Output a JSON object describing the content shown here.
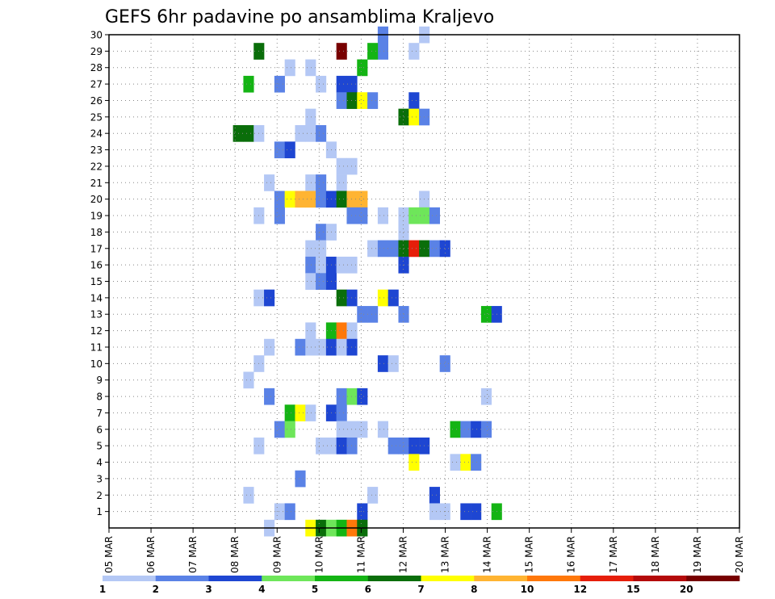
{
  "chart_data": {
    "type": "heatmap",
    "title": "GEFS 6hr padavine po ansamblima Kraljevo",
    "xlabel": "",
    "ylabel": "",
    "x_ticks": [
      "05 MAR",
      "06 MAR",
      "07 MAR",
      "08 MAR",
      "09 MAR",
      "10 MAR",
      "11 MAR",
      "12 MAR",
      "13 MAR",
      "14 MAR",
      "15 MAR",
      "16 MAR",
      "17 MAR",
      "18 MAR",
      "19 MAR",
      "20 MAR"
    ],
    "x_range": [
      0,
      61
    ],
    "y_ticks": [
      1,
      2,
      3,
      4,
      5,
      6,
      7,
      8,
      9,
      10,
      11,
      12,
      13,
      14,
      15,
      16,
      17,
      18,
      19,
      20,
      21,
      22,
      23,
      24,
      25,
      26,
      27,
      28,
      29,
      30
    ],
    "y_range": [
      0,
      30
    ],
    "grid": true,
    "colorbar": {
      "position": "bottom",
      "labels": [
        "1",
        "2",
        "3",
        "4",
        "5",
        "6",
        "7",
        "8",
        "10",
        "12",
        "15",
        "20"
      ],
      "colors": [
        "#b4c8f5",
        "#5a82e6",
        "#1e46d2",
        "#6ee65a",
        "#14b414",
        "#0a6e0a",
        "#ffff00",
        "#ffb432",
        "#ff780a",
        "#e61e0a",
        "#b40a0a",
        "#780000"
      ]
    },
    "cells": [
      [
        30,
        30,
        0
      ],
      [
        30,
        26,
        1
      ],
      [
        29,
        29,
        0
      ],
      [
        29,
        26,
        1
      ],
      [
        29,
        25,
        4
      ],
      [
        29,
        14,
        5
      ],
      [
        29,
        22,
        11
      ],
      [
        28,
        24,
        4
      ],
      [
        28,
        17,
        0
      ],
      [
        28,
        19,
        0
      ],
      [
        27,
        13,
        4
      ],
      [
        27,
        16,
        1
      ],
      [
        27,
        20,
        0
      ],
      [
        27,
        22,
        2
      ],
      [
        27,
        23,
        2
      ],
      [
        26,
        22,
        1
      ],
      [
        26,
        23,
        5
      ],
      [
        26,
        24,
        6
      ],
      [
        26,
        25,
        1
      ],
      [
        26,
        29,
        2
      ],
      [
        25,
        19,
        0
      ],
      [
        25,
        28,
        5
      ],
      [
        25,
        29,
        6
      ],
      [
        25,
        30,
        1
      ],
      [
        24,
        12,
        5
      ],
      [
        24,
        13,
        5
      ],
      [
        24,
        14,
        0
      ],
      [
        24,
        18,
        0
      ],
      [
        24,
        19,
        0
      ],
      [
        24,
        20,
        1
      ],
      [
        23,
        16,
        1
      ],
      [
        23,
        17,
        2
      ],
      [
        23,
        21,
        0
      ],
      [
        22,
        22,
        0
      ],
      [
        22,
        23,
        0
      ],
      [
        21,
        15,
        0
      ],
      [
        21,
        19,
        0
      ],
      [
        21,
        20,
        1
      ],
      [
        21,
        22,
        0
      ],
      [
        20,
        16,
        1
      ],
      [
        20,
        17,
        6
      ],
      [
        20,
        18,
        7
      ],
      [
        20,
        19,
        7
      ],
      [
        20,
        20,
        1
      ],
      [
        20,
        21,
        2
      ],
      [
        20,
        22,
        5
      ],
      [
        20,
        23,
        7
      ],
      [
        20,
        24,
        7
      ],
      [
        20,
        30,
        0
      ],
      [
        19,
        16,
        1
      ],
      [
        19,
        14,
        0
      ],
      [
        19,
        23,
        1
      ],
      [
        19,
        24,
        1
      ],
      [
        19,
        26,
        0
      ],
      [
        19,
        28,
        0
      ],
      [
        19,
        29,
        3
      ],
      [
        19,
        30,
        3
      ],
      [
        19,
        31,
        1
      ],
      [
        18,
        20,
        1
      ],
      [
        18,
        21,
        0
      ],
      [
        18,
        28,
        0
      ],
      [
        17,
        19,
        0
      ],
      [
        17,
        20,
        0
      ],
      [
        17,
        25,
        0
      ],
      [
        17,
        26,
        1
      ],
      [
        17,
        27,
        1
      ],
      [
        17,
        28,
        5
      ],
      [
        17,
        29,
        9
      ],
      [
        17,
        30,
        5
      ],
      [
        17,
        31,
        1
      ],
      [
        17,
        32,
        2
      ],
      [
        16,
        19,
        1
      ],
      [
        16,
        20,
        0
      ],
      [
        16,
        21,
        2
      ],
      [
        16,
        22,
        0
      ],
      [
        16,
        23,
        0
      ],
      [
        16,
        28,
        2
      ],
      [
        15,
        19,
        0
      ],
      [
        15,
        20,
        1
      ],
      [
        15,
        21,
        2
      ],
      [
        14,
        14,
        0
      ],
      [
        14,
        15,
        2
      ],
      [
        14,
        22,
        5
      ],
      [
        14,
        23,
        2
      ],
      [
        14,
        26,
        6
      ],
      [
        14,
        27,
        2
      ],
      [
        13,
        24,
        1
      ],
      [
        13,
        25,
        1
      ],
      [
        13,
        28,
        1
      ],
      [
        13,
        36,
        4
      ],
      [
        13,
        37,
        2
      ],
      [
        12,
        19,
        0
      ],
      [
        12,
        21,
        4
      ],
      [
        12,
        22,
        8
      ],
      [
        12,
        23,
        0
      ],
      [
        11,
        15,
        0
      ],
      [
        11,
        18,
        1
      ],
      [
        11,
        19,
        0
      ],
      [
        11,
        20,
        0
      ],
      [
        11,
        21,
        2
      ],
      [
        11,
        22,
        0
      ],
      [
        11,
        23,
        2
      ],
      [
        10,
        14,
        0
      ],
      [
        10,
        26,
        2
      ],
      [
        10,
        27,
        0
      ],
      [
        10,
        32,
        1
      ],
      [
        9,
        13,
        0
      ],
      [
        8,
        15,
        1
      ],
      [
        8,
        22,
        1
      ],
      [
        8,
        23,
        3
      ],
      [
        8,
        24,
        2
      ],
      [
        8,
        36,
        0
      ],
      [
        7,
        17,
        4
      ],
      [
        7,
        18,
        6
      ],
      [
        7,
        19,
        0
      ],
      [
        7,
        21,
        2
      ],
      [
        7,
        22,
        1
      ],
      [
        6,
        16,
        1
      ],
      [
        6,
        17,
        3
      ],
      [
        6,
        22,
        0
      ],
      [
        6,
        23,
        0
      ],
      [
        6,
        24,
        0
      ],
      [
        6,
        26,
        0
      ],
      [
        6,
        33,
        4
      ],
      [
        6,
        34,
        1
      ],
      [
        6,
        35,
        2
      ],
      [
        6,
        36,
        1
      ],
      [
        5,
        14,
        0
      ],
      [
        5,
        20,
        0
      ],
      [
        5,
        21,
        0
      ],
      [
        5,
        22,
        2
      ],
      [
        5,
        23,
        1
      ],
      [
        5,
        27,
        1
      ],
      [
        5,
        28,
        1
      ],
      [
        5,
        29,
        2
      ],
      [
        5,
        30,
        2
      ],
      [
        4,
        29,
        6
      ],
      [
        4,
        33,
        0
      ],
      [
        4,
        34,
        6
      ],
      [
        4,
        35,
        1
      ],
      [
        3,
        18,
        1
      ],
      [
        2,
        13,
        0
      ],
      [
        2,
        25,
        0
      ],
      [
        2,
        31,
        2
      ],
      [
        1,
        16,
        0
      ],
      [
        1,
        17,
        1
      ],
      [
        1,
        24,
        2
      ],
      [
        1,
        31,
        0
      ],
      [
        1,
        32,
        0
      ],
      [
        1,
        34,
        2
      ],
      [
        1,
        35,
        2
      ],
      [
        1,
        37,
        4
      ],
      [
        0,
        15,
        0
      ],
      [
        0,
        19,
        6
      ],
      [
        0,
        20,
        5
      ],
      [
        0,
        21,
        3
      ],
      [
        0,
        22,
        4
      ],
      [
        0,
        23,
        8
      ],
      [
        0,
        24,
        5
      ]
    ]
  }
}
